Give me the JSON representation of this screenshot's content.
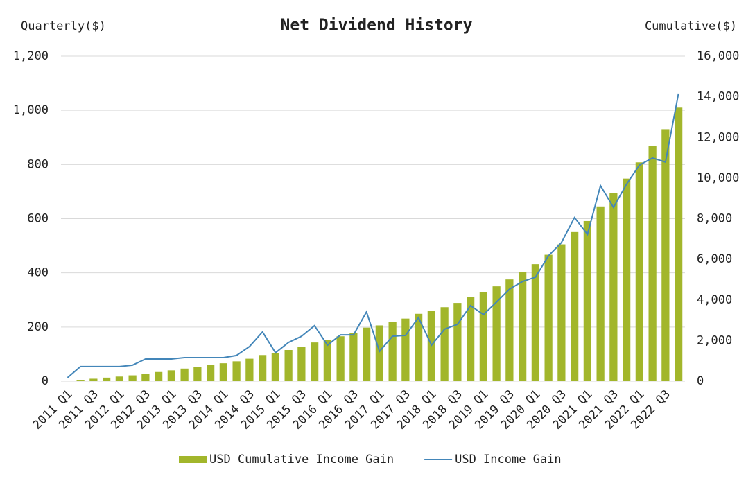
{
  "chart_data": {
    "type": "combo",
    "title": "Net Dividend History",
    "y_label": "Quarterly($)",
    "y2_label": "Cumulative($)",
    "categories": [
      "2011 Q1",
      null,
      "2011 Q3",
      null,
      "2012 Q1",
      null,
      "2012 Q3",
      null,
      "2013 Q1",
      null,
      "2013 Q3",
      null,
      "2014 Q1",
      null,
      "2014 Q3",
      null,
      "2015 Q1",
      null,
      "2015 Q3",
      null,
      "2016 Q1",
      null,
      "2016 Q3",
      null,
      "2017 Q1",
      null,
      "2017 Q3",
      null,
      "2018 Q1",
      null,
      "2018 Q3",
      null,
      "2019 Q1",
      null,
      "2019 Q3",
      null,
      "2020 Q1",
      null,
      "2020 Q3",
      null,
      "2021 Q1",
      null,
      "2021 Q3",
      null,
      "2022 Q1",
      null,
      "2022 Q3",
      null
    ],
    "series": [
      {
        "name": "USD Cumulative Income Gain",
        "type": "bar",
        "axis": "y2",
        "color": "#a2b62b",
        "values": [
          13,
          67,
          121,
          175,
          229,
          288,
          370,
          452,
          534,
          621,
          708,
          795,
          882,
          977,
          1105,
          1287,
          1392,
          1535,
          1701,
          1906,
          2039,
          2210,
          2381,
          2637,
          2747,
          2913,
          3082,
          3317,
          3450,
          3642,
          3852,
          4131,
          4377,
          4669,
          5009,
          5377,
          5761,
          6224,
          6736,
          7340,
          7882,
          8604,
          9246,
          9973,
          10771,
          11595,
          12404,
          13466
        ]
      },
      {
        "name": "USD Income Gain",
        "type": "line",
        "color": "#4386b9",
        "values": [
          13,
          54,
          54,
          54,
          54,
          59,
          82,
          82,
          82,
          87,
          87,
          87,
          87,
          95,
          128,
          182,
          105,
          143,
          166,
          205,
          133,
          171,
          171,
          256,
          110,
          166,
          169,
          235,
          133,
          192,
          210,
          279,
          246,
          292,
          340,
          368,
          384,
          463,
          512,
          604,
          542,
          722,
          642,
          727,
          798,
          824,
          809,
          1062
        ]
      }
    ],
    "ylim": [
      0,
      1200
    ],
    "yticks": [
      0,
      200,
      400,
      600,
      800,
      {
        "value": 1000,
        "label": "1,000"
      },
      {
        "value": 1200,
        "label": "1,200"
      }
    ],
    "y2lim": [
      0,
      16000
    ],
    "y2ticks": [
      0,
      {
        "value": 2000,
        "label": "2,000"
      },
      {
        "value": 4000,
        "label": "4,000"
      },
      {
        "value": 6000,
        "label": "6,000"
      },
      {
        "value": 8000,
        "label": "8,000"
      },
      {
        "value": 10000,
        "label": "10,000"
      },
      {
        "value": 12000,
        "label": "12,000"
      },
      {
        "value": 14000,
        "label": "14,000"
      },
      {
        "value": 16000,
        "label": "16,000"
      }
    ],
    "grid": true,
    "legend": "bottom"
  }
}
